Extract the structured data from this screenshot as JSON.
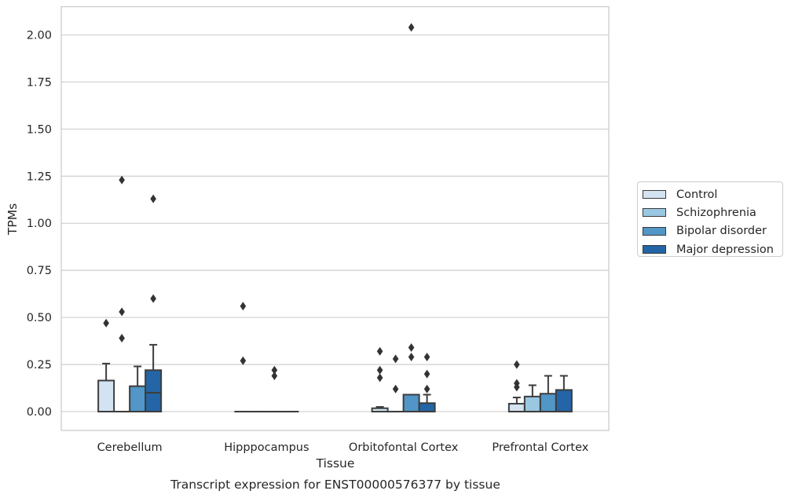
{
  "chart_data": {
    "type": "boxplot",
    "title": "Transcript expression for ENST00000576377 by tissue",
    "xlabel": "Tissue",
    "ylabel": "TPMs",
    "ylim": [
      -0.1,
      2.15
    ],
    "yticks": [
      0.0,
      0.25,
      0.5,
      0.75,
      1.0,
      1.25,
      1.5,
      1.75,
      2.0
    ],
    "ytick_labels": [
      "0.00",
      "0.25",
      "0.50",
      "0.75",
      "1.00",
      "1.25",
      "1.50",
      "1.75",
      "2.00"
    ],
    "grid": "horizontal",
    "legend_position": "outside right",
    "categories": [
      "Cerebellum",
      "Hipppocampus",
      "Orbitofontal Cortex",
      "Prefrontal Cortex"
    ],
    "series": [
      {
        "name": "Control",
        "color": "#d3e3f2",
        "boxes": [
          {
            "q1": 0.0,
            "median": 0.0,
            "q3": 0.165,
            "whisker_low": 0.0,
            "whisker_high": 0.255,
            "outliers": [
              0.47
            ]
          },
          {
            "q1": 0.0,
            "median": 0.0,
            "q3": 0.0,
            "whisker_low": 0.0,
            "whisker_high": 0.0,
            "outliers": [
              0.56,
              0.27
            ]
          },
          {
            "q1": 0.0,
            "median": 0.0,
            "q3": 0.018,
            "whisker_low": 0.0,
            "whisker_high": 0.025,
            "outliers": [
              0.32,
              0.22,
              0.18
            ]
          },
          {
            "q1": 0.0,
            "median": 0.0,
            "q3": 0.042,
            "whisker_low": 0.0,
            "whisker_high": 0.075,
            "outliers": [
              0.25,
              0.15,
              0.13
            ]
          }
        ]
      },
      {
        "name": "Schizophrenia",
        "color": "#9ac7e1",
        "boxes": [
          {
            "q1": 0.0,
            "median": 0.0,
            "q3": 0.0,
            "whisker_low": 0.0,
            "whisker_high": 0.0,
            "outliers": [
              1.23,
              0.53,
              0.39
            ]
          },
          {
            "q1": 0.0,
            "median": 0.0,
            "q3": 0.0,
            "whisker_low": 0.0,
            "whisker_high": 0.0,
            "outliers": []
          },
          {
            "q1": 0.0,
            "median": 0.0,
            "q3": 0.0,
            "whisker_low": 0.0,
            "whisker_high": 0.0,
            "outliers": [
              0.28,
              0.12
            ]
          },
          {
            "q1": 0.0,
            "median": 0.0,
            "q3": 0.08,
            "whisker_low": 0.0,
            "whisker_high": 0.14,
            "outliers": []
          }
        ]
      },
      {
        "name": "Bipolar disorder",
        "color": "#5196c7",
        "boxes": [
          {
            "q1": 0.0,
            "median": 0.0,
            "q3": 0.135,
            "whisker_low": 0.0,
            "whisker_high": 0.24,
            "outliers": []
          },
          {
            "q1": 0.0,
            "median": 0.0,
            "q3": 0.0,
            "whisker_low": 0.0,
            "whisker_high": 0.0,
            "outliers": [
              0.22,
              0.19
            ]
          },
          {
            "q1": 0.0,
            "median": 0.0,
            "q3": 0.09,
            "whisker_low": 0.0,
            "whisker_high": 0.09,
            "outliers": [
              2.04,
              0.34,
              0.29
            ]
          },
          {
            "q1": 0.0,
            "median": 0.0,
            "q3": 0.095,
            "whisker_low": 0.0,
            "whisker_high": 0.19,
            "outliers": []
          }
        ]
      },
      {
        "name": "Major depression",
        "color": "#2365a6",
        "boxes": [
          {
            "q1": 0.0,
            "median": 0.1,
            "q3": 0.22,
            "whisker_low": 0.0,
            "whisker_high": 0.355,
            "outliers": [
              1.13,
              0.6
            ]
          },
          {
            "q1": 0.0,
            "median": 0.0,
            "q3": 0.0,
            "whisker_low": 0.0,
            "whisker_high": 0.0,
            "outliers": []
          },
          {
            "q1": 0.0,
            "median": 0.0,
            "q3": 0.045,
            "whisker_low": 0.0,
            "whisker_high": 0.09,
            "outliers": [
              0.29,
              0.2,
              0.12
            ]
          },
          {
            "q1": 0.0,
            "median": 0.0,
            "q3": 0.115,
            "whisker_low": 0.0,
            "whisker_high": 0.19,
            "outliers": []
          }
        ]
      }
    ]
  }
}
